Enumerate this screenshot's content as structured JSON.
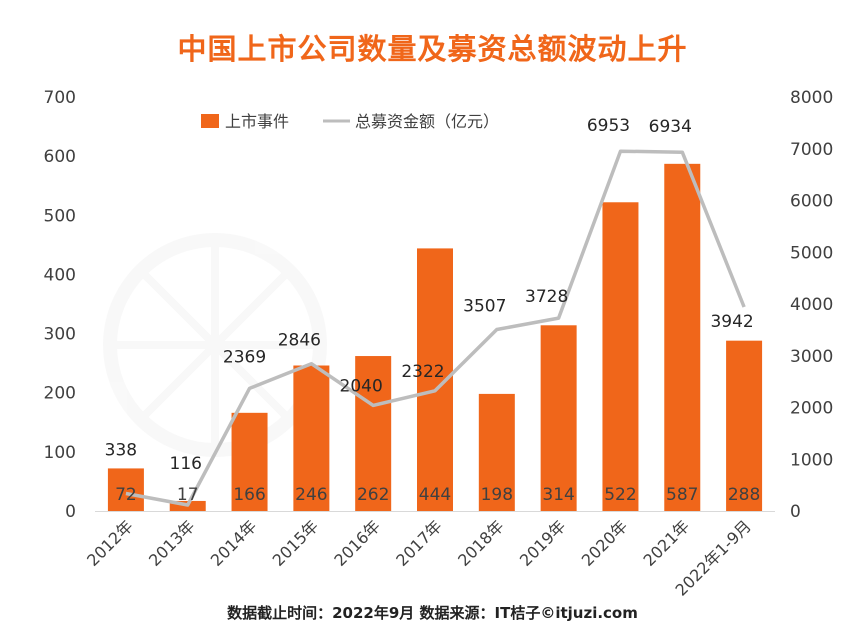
{
  "title": "中国上市公司数量及募资总额波动上升",
  "footer": "数据截止时间：2022年9月 数据来源：IT桔子©itjuzi.com",
  "colors": {
    "bar": "#f0661a",
    "line": "#bdbdbd",
    "title": "#f0661a"
  },
  "chart_data": {
    "type": "bar+line",
    "categories": [
      "2012年",
      "2013年",
      "2014年",
      "2015年",
      "2016年",
      "2017年",
      "2018年",
      "2019年",
      "2020年",
      "2021年",
      "2022年1-9月"
    ],
    "series": [
      {
        "name": "上市事件",
        "type": "bar",
        "axis": "left",
        "values": [
          72,
          17,
          166,
          246,
          262,
          444,
          198,
          314,
          522,
          587,
          288
        ]
      },
      {
        "name": "总募资金额（亿元）",
        "type": "line",
        "axis": "right",
        "values": [
          338,
          116,
          2369,
          2846,
          2040,
          2322,
          3507,
          3728,
          6953,
          6934,
          3942
        ]
      }
    ],
    "y_left": {
      "ylim": [
        0,
        700
      ],
      "ticks": [
        "0",
        "100",
        "200",
        "300",
        "400",
        "500",
        "600",
        "700"
      ]
    },
    "y_right": {
      "ylim": [
        0,
        8000
      ],
      "ticks": [
        "0",
        "1000",
        "2000",
        "3000",
        "4000",
        "5000",
        "6000",
        "7000",
        "8000"
      ]
    },
    "legend": {
      "position": "top-center",
      "entries": [
        "上市事件",
        "总募资金额（亿元）"
      ]
    },
    "grid": false
  }
}
